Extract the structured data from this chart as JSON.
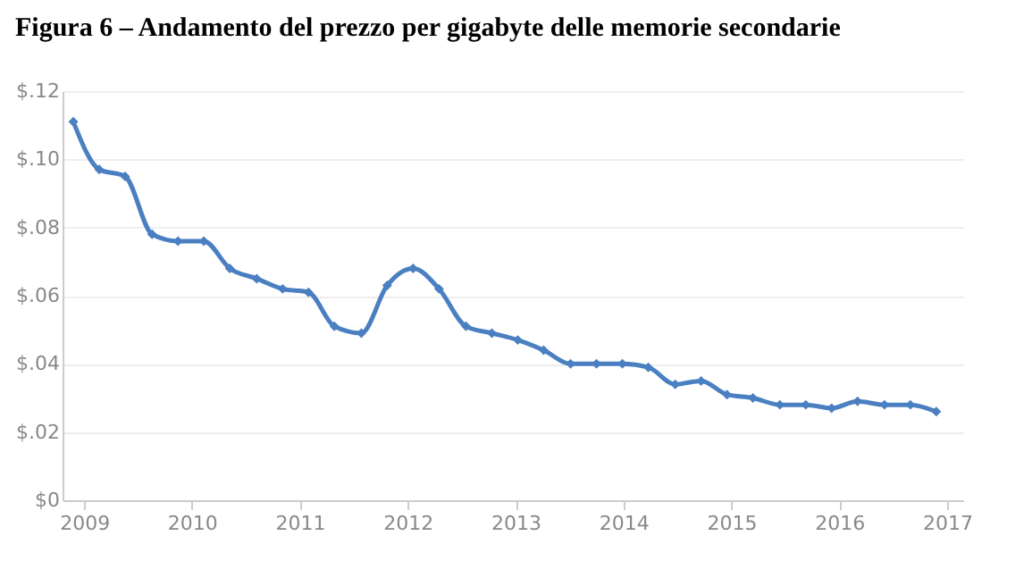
{
  "chart_data": {
    "type": "line",
    "title": "Figura 6 – Andamento del prezzo per gigabyte delle memorie secondarie",
    "x": [
      2008.9,
      2009.14,
      2009.38,
      2009.63,
      2009.87,
      2010.11,
      2010.35,
      2010.6,
      2010.84,
      2011.08,
      2011.32,
      2011.57,
      2011.81,
      2012.05,
      2012.29,
      2012.54,
      2012.78,
      2013.02,
      2013.26,
      2013.51,
      2013.75,
      2013.99,
      2014.23,
      2014.48,
      2014.72,
      2014.96,
      2015.2,
      2015.45,
      2015.69,
      2015.93,
      2016.17,
      2016.42,
      2016.66,
      2016.9
    ],
    "series": [
      {
        "color": "#4a7fc1",
        "values": [
          0.111,
          0.097,
          0.095,
          0.078,
          0.076,
          0.076,
          0.068,
          0.065,
          0.062,
          0.061,
          0.051,
          0.049,
          0.063,
          0.068,
          0.062,
          0.051,
          0.049,
          0.047,
          0.044,
          0.04,
          0.04,
          0.04,
          0.039,
          0.034,
          0.035,
          0.031,
          0.03,
          0.028,
          0.028,
          0.027,
          0.029,
          0.028,
          0.028,
          0.026
        ]
      }
    ],
    "xlim": [
      2008.8,
      2017.15
    ],
    "xticks": [
      2009,
      2010,
      2011,
      2012,
      2013,
      2014,
      2015,
      2016,
      2017
    ],
    "ylim": [
      0,
      0.12
    ],
    "yticks": [
      {
        "value": 0,
        "label": "$0"
      },
      {
        "value": 0.02,
        "label": "$.02"
      },
      {
        "value": 0.04,
        "label": "$.04"
      },
      {
        "value": 0.06,
        "label": "$.06"
      },
      {
        "value": 0.08,
        "label": "$.08"
      },
      {
        "value": 0.1,
        "label": "$.10"
      },
      {
        "value": 0.12,
        "label": "$.12"
      }
    ],
    "grid": "y",
    "marker": "diamond",
    "line_style": "solid"
  }
}
